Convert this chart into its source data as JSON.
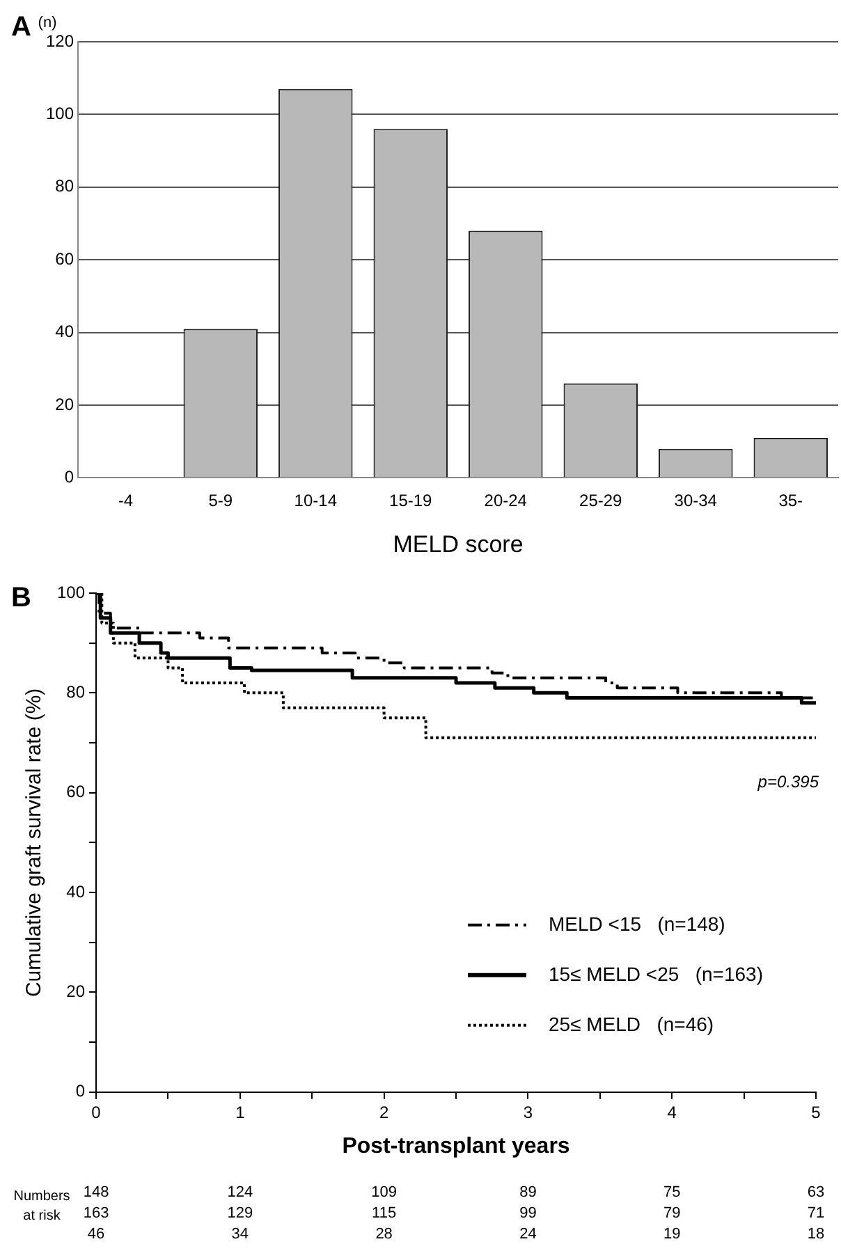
{
  "chart_data": [
    {
      "type": "bar",
      "xlabel": "MELD score",
      "ylabel": "(n)",
      "annotations": [
        "A"
      ],
      "categories": [
        "-4",
        "5-9",
        "10-14",
        "15-19",
        "20-24",
        "25-29",
        "30-34",
        "35-"
      ],
      "values": [
        0,
        41,
        107,
        96,
        68,
        26,
        8,
        11
      ],
      "color": "#b8b8b8",
      "ylim": [
        0,
        120
      ],
      "yticks": [
        0,
        20,
        40,
        60,
        80,
        100,
        120
      ],
      "grid": "y",
      "legend": false
    },
    {
      "type": "step",
      "xlabel": "Post-transplant years",
      "ylabel": "Cumulative graft survival rate (%)",
      "legend": "bottom right",
      "grid": false,
      "annotations": [
        "B",
        "p=0.395",
        "Numbers at risk",
        "148",
        "124",
        "109",
        "89",
        "75",
        "63",
        "163",
        "129",
        "115",
        "99",
        "79",
        "71",
        "46",
        "34",
        "28",
        "24",
        "19",
        "18"
      ],
      "xlim": [
        0,
        5
      ],
      "xticks": [
        0,
        {
          "value": 0.5,
          "label": null
        },
        1,
        {
          "value": 1.5,
          "label": null
        },
        2,
        {
          "value": 2.5,
          "label": null
        },
        3,
        {
          "value": 3.5,
          "label": null
        },
        4,
        {
          "value": 4.5,
          "label": null
        },
        5
      ],
      "ylim": [
        0,
        100
      ],
      "yticks": [
        0,
        {
          "value": 10,
          "label": null
        },
        20,
        {
          "value": 30,
          "label": null
        },
        40,
        {
          "value": 50,
          "label": null
        },
        60,
        {
          "value": 70,
          "label": null
        },
        80,
        {
          "value": 90,
          "label": null
        },
        100
      ],
      "series": [
        {
          "name": "MELD <15   (n=148)",
          "color": "#000000",
          "line_style": "dashed",
          "x": [
            0,
            0.02,
            0.1,
            0.31,
            0.72,
            0.92,
            1.57,
            1.8,
            2.0,
            2.14,
            2.75,
            2.86,
            3.54,
            3.62,
            4.04,
            4.76,
            5
          ],
          "values": [
            100,
            96,
            93,
            92,
            91,
            89,
            88,
            87,
            86,
            85,
            84,
            83,
            82,
            81,
            80,
            79,
            79
          ]
        },
        {
          "name": "15≤ MELD <25   (n=163)",
          "color": "#000000",
          "line_style": "solid",
          "x": [
            0,
            0.03,
            0.1,
            0.3,
            0.45,
            0.5,
            0.93,
            1.08,
            1.78,
            2.5,
            2.77,
            3.04,
            3.27,
            4.9,
            5
          ],
          "values": [
            100,
            95,
            92,
            90,
            88,
            87,
            85,
            84.5,
            83,
            82,
            81,
            80,
            79,
            78,
            78
          ]
        },
        {
          "name": "25≤ MELD   (n=46)",
          "color": "#000000",
          "line_style": "dotted",
          "x": [
            0,
            0.04,
            0.12,
            0.27,
            0.5,
            0.6,
            1.03,
            1.3,
            2.0,
            2.29,
            5
          ],
          "values": [
            100,
            94,
            90,
            87,
            85,
            82,
            80,
            77,
            75,
            71,
            71
          ]
        }
      ]
    }
  ]
}
